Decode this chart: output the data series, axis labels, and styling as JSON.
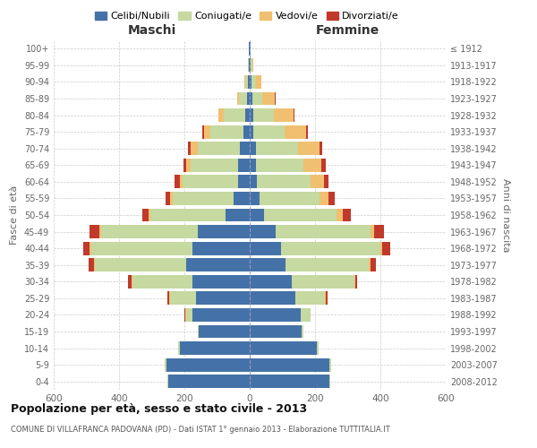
{
  "age_groups": [
    "0-4",
    "5-9",
    "10-14",
    "15-19",
    "20-24",
    "25-29",
    "30-34",
    "35-39",
    "40-44",
    "45-49",
    "50-54",
    "55-59",
    "60-64",
    "65-69",
    "70-74",
    "75-79",
    "80-84",
    "85-89",
    "90-94",
    "95-99",
    "100+"
  ],
  "birth_years": [
    "2008-2012",
    "2003-2007",
    "1998-2002",
    "1993-1997",
    "1988-1992",
    "1983-1987",
    "1978-1982",
    "1973-1977",
    "1968-1972",
    "1963-1967",
    "1958-1962",
    "1953-1957",
    "1948-1952",
    "1943-1947",
    "1938-1942",
    "1933-1937",
    "1928-1932",
    "1923-1927",
    "1918-1922",
    "1913-1917",
    "≤ 1912"
  ],
  "male": {
    "celibi": [
      250,
      255,
      215,
      155,
      175,
      165,
      175,
      195,
      175,
      160,
      75,
      50,
      35,
      35,
      30,
      20,
      15,
      8,
      5,
      3,
      2
    ],
    "coniugati": [
      2,
      5,
      5,
      5,
      20,
      80,
      185,
      280,
      310,
      295,
      230,
      185,
      170,
      145,
      130,
      100,
      65,
      25,
      10,
      2,
      0
    ],
    "vedovi": [
      0,
      0,
      0,
      0,
      2,
      2,
      2,
      2,
      5,
      5,
      5,
      8,
      10,
      15,
      20,
      20,
      15,
      5,
      2,
      0,
      0
    ],
    "divorziati": [
      0,
      0,
      0,
      0,
      2,
      5,
      10,
      15,
      20,
      30,
      20,
      15,
      15,
      8,
      8,
      5,
      2,
      0,
      0,
      0,
      0
    ]
  },
  "female": {
    "nubili": [
      245,
      245,
      205,
      160,
      155,
      140,
      130,
      110,
      95,
      80,
      45,
      30,
      22,
      20,
      18,
      12,
      10,
      8,
      5,
      3,
      2
    ],
    "coniugate": [
      2,
      3,
      5,
      5,
      30,
      90,
      190,
      255,
      305,
      290,
      220,
      185,
      165,
      145,
      130,
      95,
      65,
      30,
      15,
      5,
      0
    ],
    "vedove": [
      0,
      0,
      0,
      0,
      0,
      2,
      2,
      5,
      5,
      10,
      20,
      25,
      40,
      55,
      65,
      65,
      60,
      40,
      15,
      2,
      0
    ],
    "divorziate": [
      0,
      0,
      0,
      0,
      2,
      5,
      8,
      15,
      25,
      30,
      25,
      20,
      15,
      12,
      10,
      5,
      2,
      2,
      0,
      0,
      0
    ]
  },
  "colors": {
    "celibi_nubili": "#4472a8",
    "coniugati": "#c5d9a0",
    "vedovi": "#f0c070",
    "divorziati": "#c0392b"
  },
  "xlim": 600,
  "title": "Popolazione per età, sesso e stato civile - 2013",
  "subtitle": "COMUNE DI VILLAFRANCA PADOVANA (PD) - Dati ISTAT 1° gennaio 2013 - Elaborazione TUTTITALIA.IT",
  "xlabel_left": "Maschi",
  "xlabel_right": "Femmine",
  "ylabel_left": "Fasce di età",
  "ylabel_right": "Anni di nascita",
  "legend_labels": [
    "Celibi/Nubili",
    "Coniugati/e",
    "Vedovi/e",
    "Divorziati/e"
  ],
  "bar_height": 0.8,
  "background_color": "#ffffff",
  "grid_color": "#cccccc"
}
